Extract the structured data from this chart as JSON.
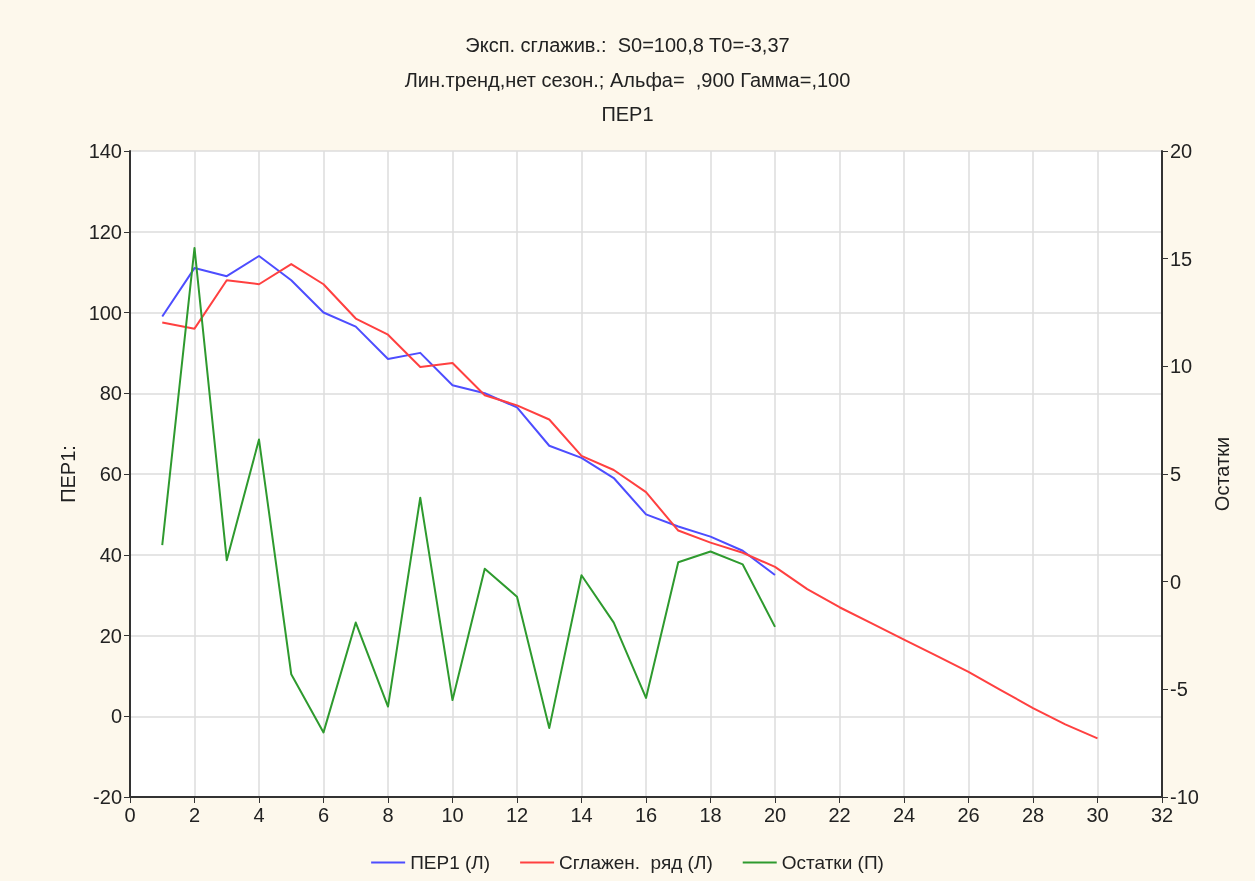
{
  "chart_data": {
    "type": "line",
    "title": "Эксп. сглажив.:  S0=100,8 T0=-3,37",
    "subtitle": "Лин.тренд,нет сезон.; Альфа=  ,900 Гамма=,100\nПЕР1",
    "ylabel": "ПЕР1:",
    "y2label": "Остатки",
    "xlim": [
      0,
      32
    ],
    "xticks": [
      0,
      2,
      4,
      6,
      8,
      10,
      12,
      14,
      16,
      18,
      20,
      22,
      24,
      26,
      28,
      30,
      32
    ],
    "ylim": [
      -20,
      140
    ],
    "yticks": [
      -20,
      0,
      20,
      40,
      60,
      80,
      100,
      120,
      140
    ],
    "y2lim": [
      -10,
      20
    ],
    "y2ticks": [
      -10,
      -5,
      0,
      5,
      10,
      15,
      20
    ],
    "grid": true,
    "legend": "bottom",
    "marker": "none",
    "line_style": "solid",
    "series": [
      {
        "name": "ПЕР1 (Л)",
        "color": "#4d4dff",
        "x": [
          1,
          2,
          3,
          4,
          5,
          6,
          7,
          8,
          9,
          10,
          11,
          12,
          13,
          14,
          15,
          16,
          17,
          18,
          19,
          20
        ],
        "values": [
          99,
          111,
          109,
          114,
          108,
          100,
          96.5,
          88.5,
          90,
          82,
          80,
          76.5,
          67,
          64,
          59,
          50,
          47,
          44.5,
          41,
          35
        ]
      },
      {
        "name": "Сглажен.  ряд (Л)",
        "color": "#ff4040",
        "x": [
          1,
          2,
          3,
          4,
          5,
          6,
          7,
          8,
          9,
          10,
          11,
          12,
          13,
          14,
          15,
          16,
          17,
          18,
          19,
          20,
          21,
          22,
          23,
          24,
          25,
          26,
          27,
          28,
          29,
          30
        ],
        "values": [
          97.5,
          96,
          108,
          107,
          112,
          107,
          98.5,
          94.5,
          86.5,
          87.5,
          79.5,
          77,
          73.5,
          64.5,
          61,
          55.5,
          46,
          43,
          40.5,
          37,
          31.5,
          27,
          23,
          19,
          15,
          11,
          6.5,
          2,
          -2,
          -5.5
        ]
      },
      {
        "name": "Остатки (П)",
        "color": "#2e9a2e",
        "axis": "y2",
        "x": [
          1,
          2,
          3,
          4,
          5,
          6,
          7,
          8,
          9,
          10,
          11,
          12,
          13,
          14,
          15,
          16,
          17,
          18,
          19,
          20
        ],
        "values": [
          1.7,
          15.5,
          1.0,
          6.6,
          -4.3,
          -7.0,
          -1.9,
          -5.8,
          3.9,
          -5.5,
          0.6,
          -0.7,
          -6.8,
          0.3,
          -1.9,
          -5.4,
          0.9,
          1.4,
          0.8,
          -2.1
        ]
      }
    ]
  }
}
